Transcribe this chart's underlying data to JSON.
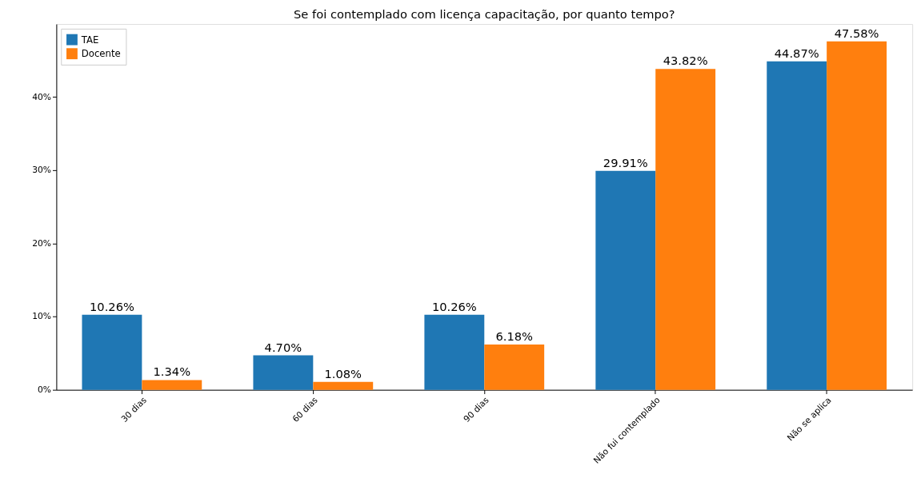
{
  "chart_data": {
    "type": "bar",
    "title": "Se foi contemplado com licença capacitação, por quanto tempo?",
    "categories": [
      "30 dias",
      "60 dias",
      "90 dias",
      "Não fui contemplado",
      "Não se aplica"
    ],
    "series": [
      {
        "name": "TAE",
        "color": "#1f77b4",
        "values": [
          10.26,
          4.7,
          10.26,
          29.91,
          44.87
        ],
        "value_labels": [
          "10.26%",
          "4.70%",
          "10.26%",
          "29.91%",
          "44.87%"
        ]
      },
      {
        "name": "Docente",
        "color": "#ff7f0e",
        "values": [
          1.34,
          1.08,
          6.18,
          43.82,
          47.58
        ],
        "value_labels": [
          "1.34%",
          "1.08%",
          "6.18%",
          "43.82%",
          "47.58%"
        ]
      }
    ],
    "ylim": [
      0,
      49.96
    ],
    "yticks": [
      {
        "value": 0,
        "label": "0%"
      },
      {
        "value": 10,
        "label": "10%"
      },
      {
        "value": 20,
        "label": "20%"
      },
      {
        "value": 30,
        "label": "30%"
      },
      {
        "value": 40,
        "label": "40%"
      }
    ],
    "legend": "top left",
    "grid": false
  }
}
